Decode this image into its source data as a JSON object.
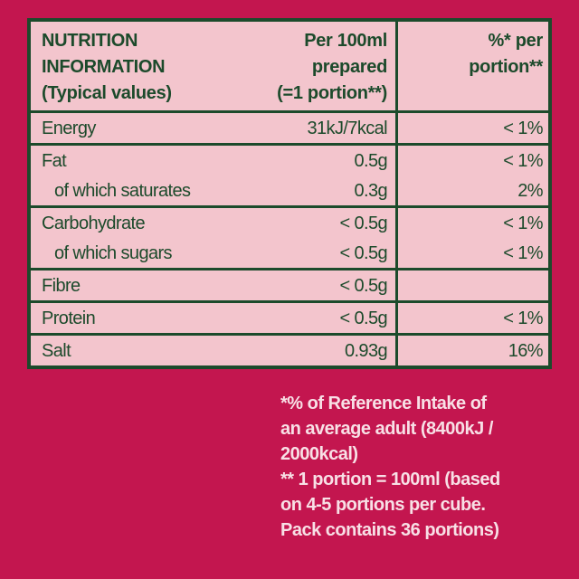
{
  "header": {
    "label": [
      "NUTRITION",
      "INFORMATION",
      "(Typical values)"
    ],
    "per_100ml": [
      "Per 100ml",
      "prepared",
      "(=1 portion**)"
    ],
    "percent": [
      "%* per",
      "portion**"
    ]
  },
  "rows": [
    [
      [
        "Energy",
        "31kJ/7kcal",
        "< 1%"
      ]
    ],
    [
      [
        "Fat",
        "0.5g",
        "< 1%"
      ],
      [
        "of which saturates",
        "0.3g",
        "2%"
      ]
    ],
    [
      [
        "Carbohydrate",
        "< 0.5g",
        "< 1%"
      ],
      [
        "of which sugars",
        "< 0.5g",
        "< 1%"
      ]
    ],
    [
      [
        "Fibre",
        "< 0.5g",
        null
      ]
    ],
    [
      [
        "Protein",
        "< 0.5g",
        "< 1%"
      ]
    ],
    [
      [
        "Salt",
        "0.93g",
        "16%"
      ]
    ]
  ],
  "footnotes": [
    "*% of Reference Intake of",
    "an average adult (8400kJ /",
    "2000kcal)",
    "** 1 portion = 100ml (based",
    "on 4-5 portions per cube.",
    "Pack contains 36 portions)"
  ]
}
